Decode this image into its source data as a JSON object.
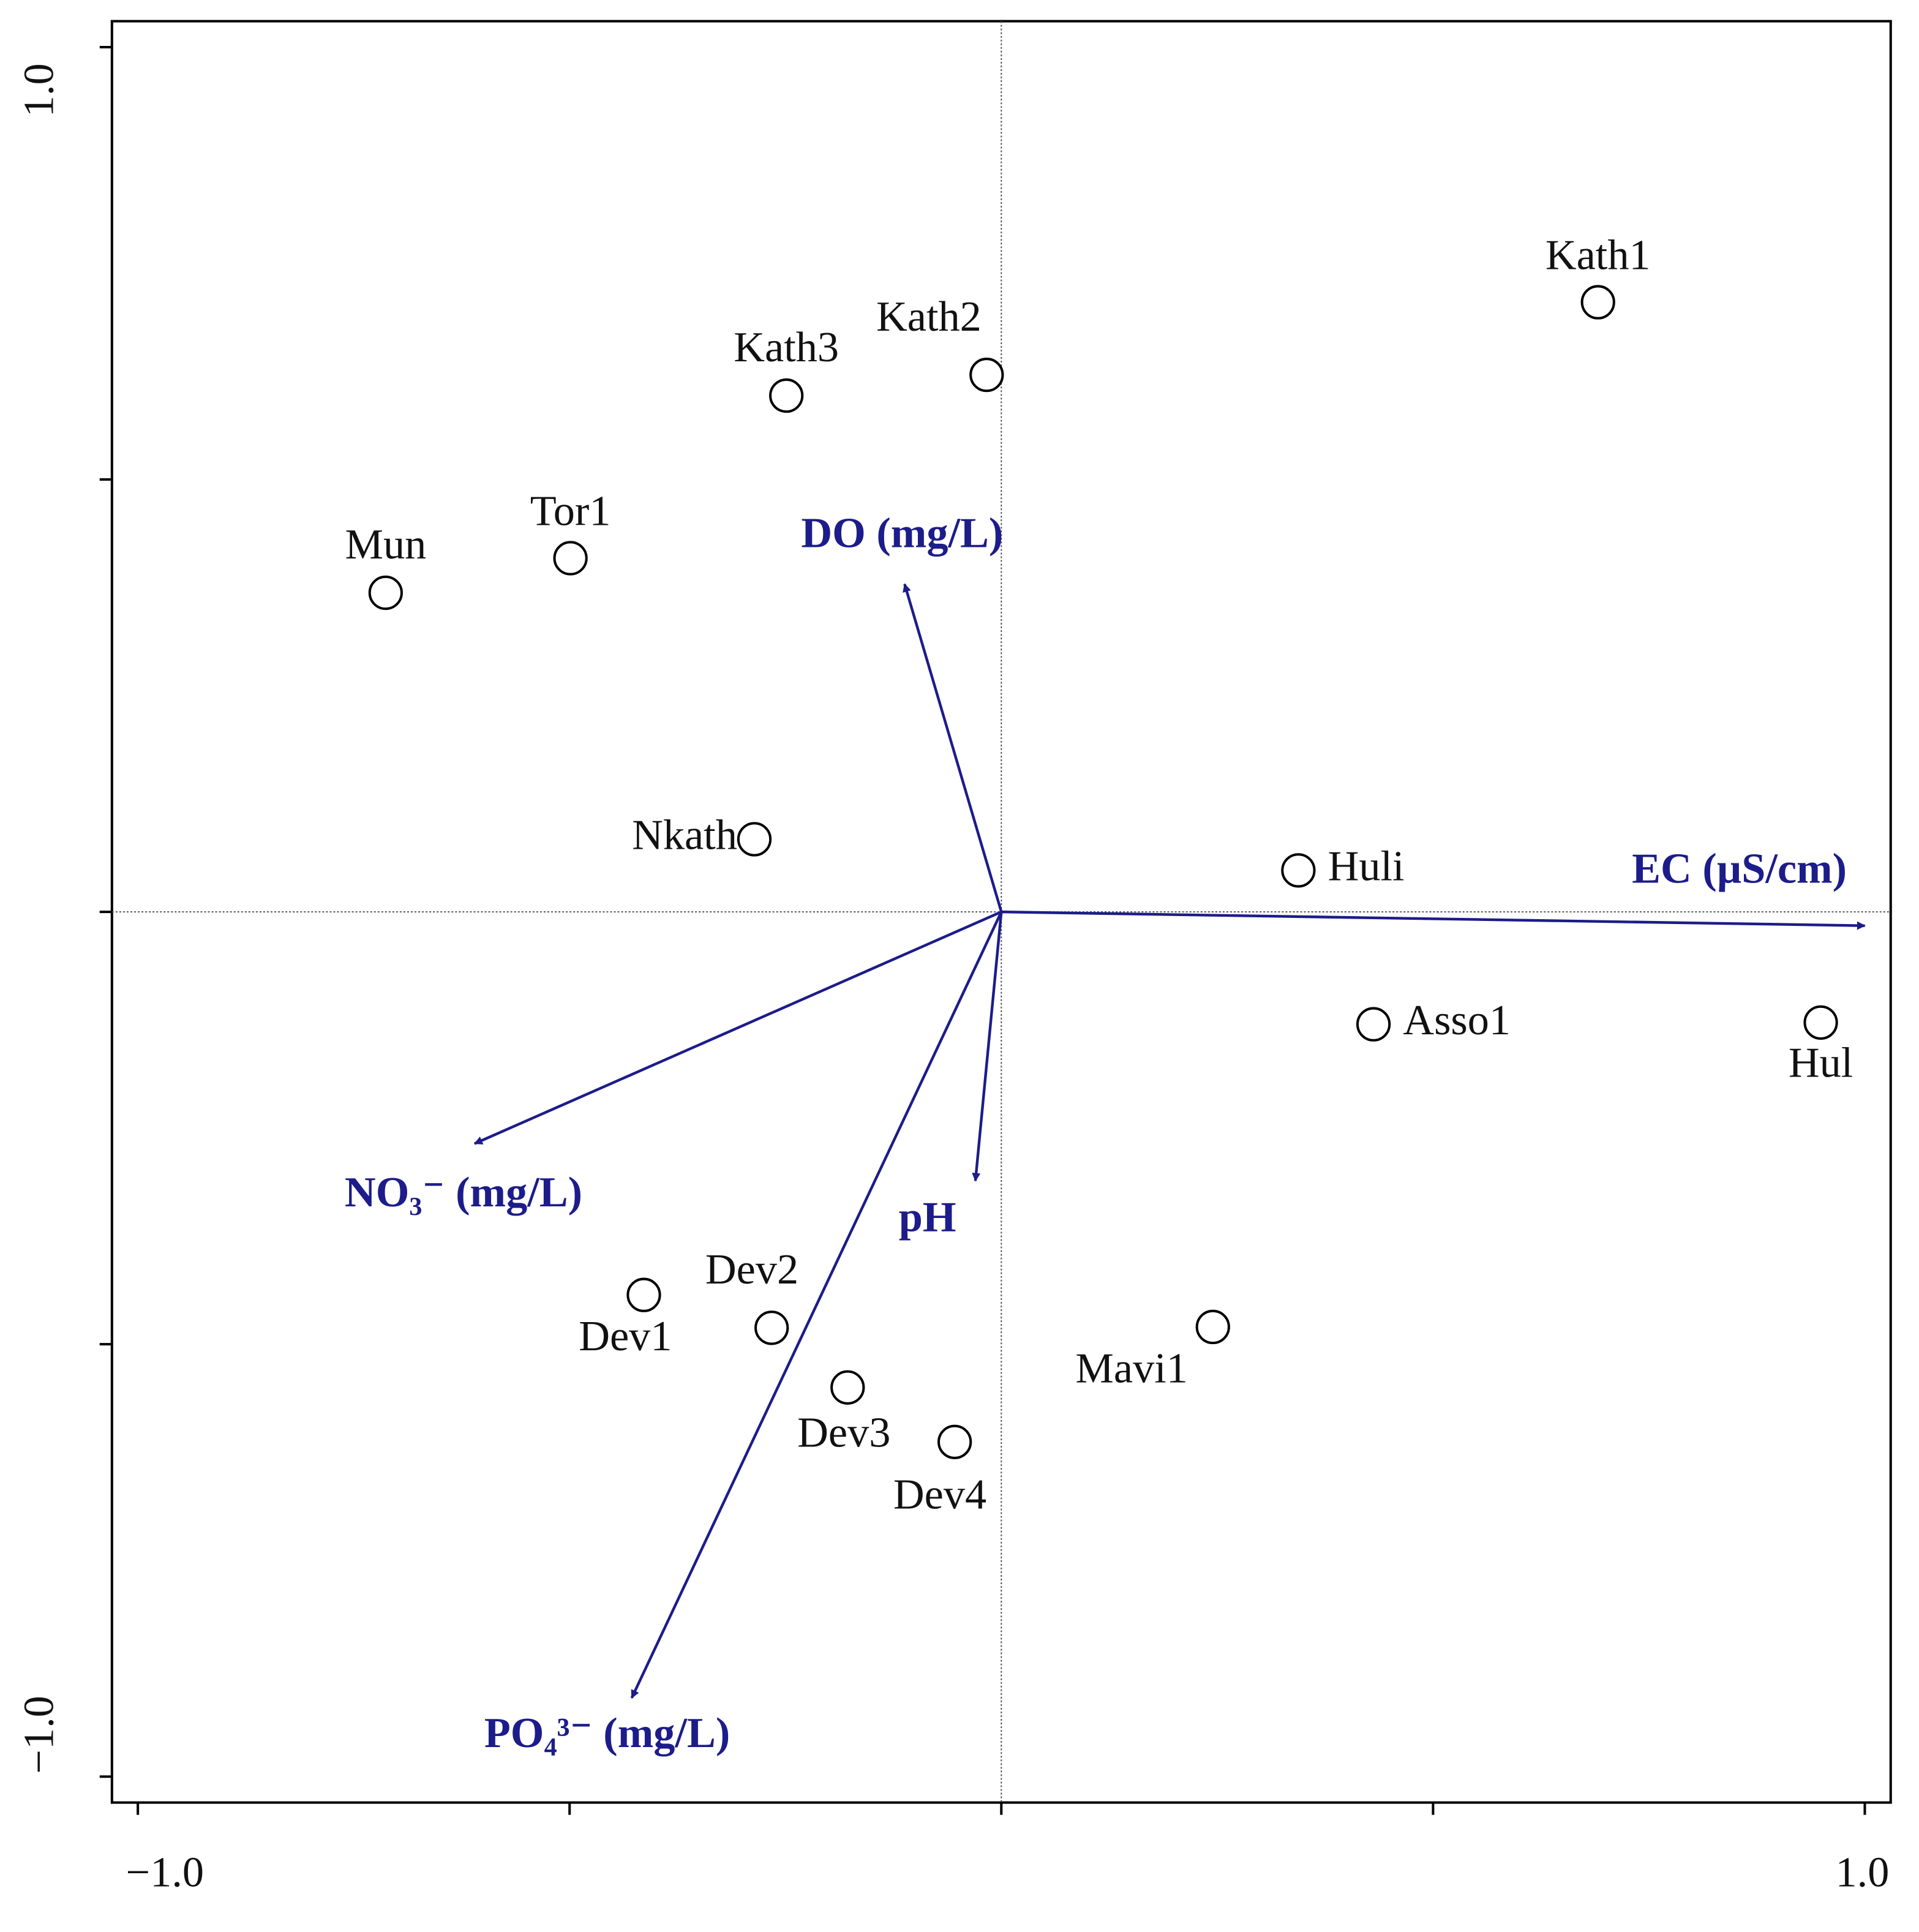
{
  "chart_data": {
    "type": "biplot",
    "xlim": [
      -1.03,
      1.03
    ],
    "ylim": [
      -1.03,
      1.03
    ],
    "xticks": [
      {
        "value": -1,
        "label": "−1.0"
      },
      {
        "value": -0.5,
        "label": null
      },
      {
        "value": 0,
        "label": null
      },
      {
        "value": 0.5,
        "label": null
      },
      {
        "value": 1,
        "label": "1.0"
      }
    ],
    "yticks": [
      {
        "value": -1,
        "label": "−1.0"
      },
      {
        "value": -0.5,
        "label": null
      },
      {
        "value": 0,
        "label": null
      },
      {
        "value": 0.5,
        "label": null
      },
      {
        "value": 1,
        "label": "1.0"
      }
    ],
    "zero_lines": true,
    "points": {
      "names": [
        "Kath1",
        "Kath2",
        "Kath3",
        "Tor1",
        "Mun",
        "Nkath",
        "Huli",
        "Asso1",
        "Hul",
        "Mavi1",
        "Dev1",
        "Dev2",
        "Dev3",
        "Dev4"
      ],
      "x": [
        0.691,
        -0.017,
        -0.249,
        -0.499,
        -0.713,
        -0.286,
        0.344,
        0.431,
        0.949,
        0.245,
        -0.414,
        -0.266,
        -0.178,
        -0.054
      ],
      "y": [
        0.705,
        0.621,
        0.597,
        0.409,
        0.369,
        0.084,
        0.048,
        -0.13,
        -0.128,
        -0.48,
        -0.443,
        -0.481,
        -0.55,
        -0.613
      ]
    },
    "vectors": {
      "names": [
        "EC (µS/cm)",
        "DO (mg/L)",
        "NO₃⁻ (mg/L)",
        "pH",
        "PO₄³⁻ (mg/L)"
      ],
      "x": [
        1.0,
        -0.112,
        -0.61,
        -0.03,
        -0.428
      ],
      "y": [
        -0.016,
        0.379,
        -0.268,
        -0.311,
        -0.909
      ],
      "color": "#1c1c8a"
    }
  }
}
